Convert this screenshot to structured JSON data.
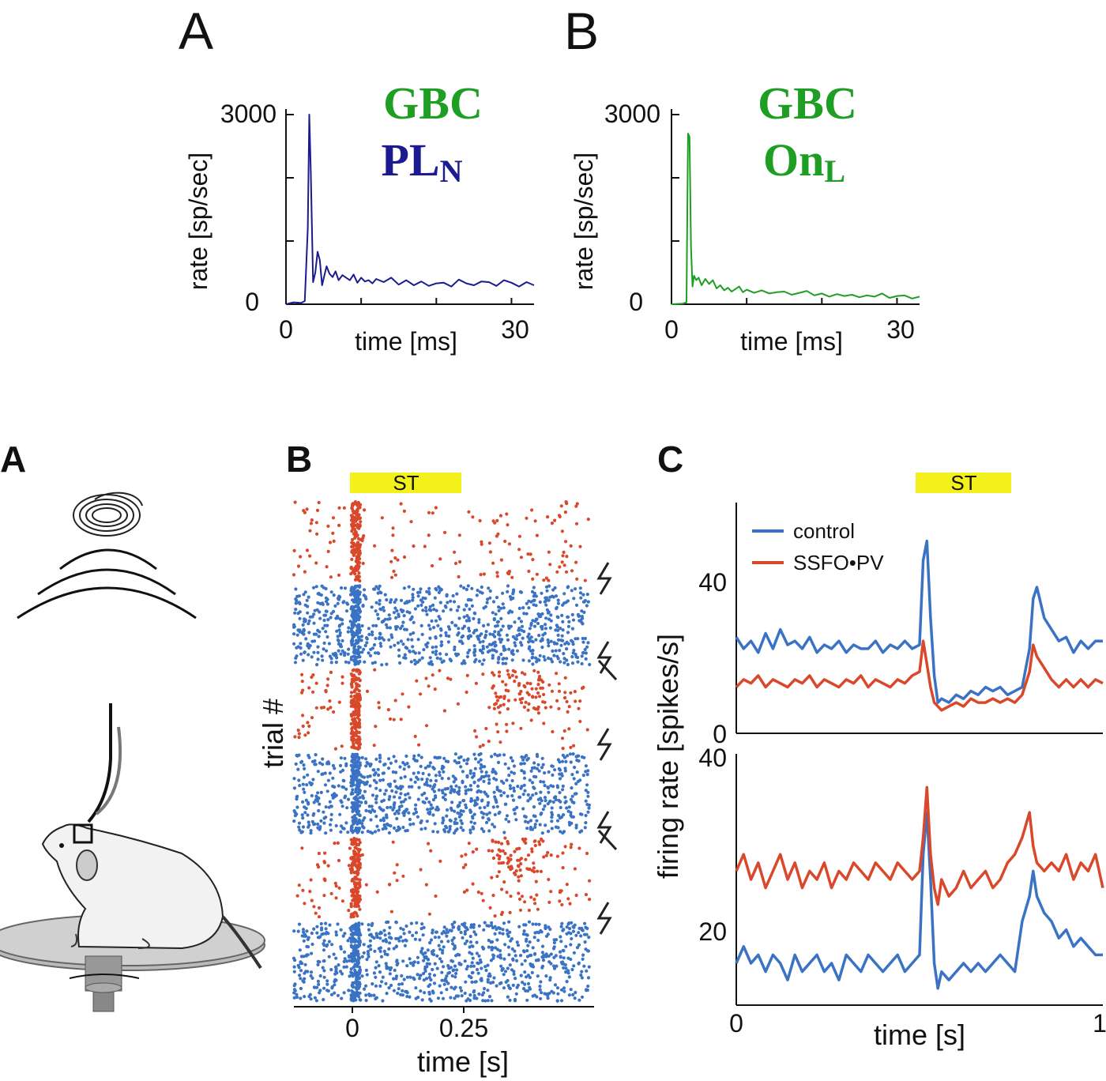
{
  "colors": {
    "blue_dark": "#1b1b8f",
    "green": "#1e9e23",
    "blue": "#3a72c4",
    "red": "#d9482a",
    "yellow": "#f4f01c",
    "black": "#111111"
  },
  "top": {
    "panel_a": {
      "letter": "A",
      "title_line1": "GBC",
      "title_line2_main": "PL",
      "title_line2_sub": "N",
      "ylabel": "rate [sp/sec]",
      "xlabel": "time [ms]",
      "yticks": [
        "3000",
        "0"
      ],
      "xticks": [
        "0",
        "30"
      ]
    },
    "panel_b": {
      "letter": "B",
      "title_line1": "GBC",
      "title_line2_main": "On",
      "title_line2_sub": "L",
      "ylabel": "rate [sp/sec]",
      "xlabel": "time [ms]",
      "yticks": [
        "3000",
        "0"
      ],
      "xticks": [
        "0",
        "30"
      ]
    }
  },
  "bottom": {
    "panel_a": {
      "letter": "A",
      "illustration": "head-fixed mouse on rotating platform with speaker above"
    },
    "panel_b": {
      "letter": "B",
      "stim_label": "ST",
      "ylabel": "trial #",
      "xlabel": "time [s]",
      "xticks": [
        "0",
        "0.25"
      ]
    },
    "panel_c": {
      "letter": "C",
      "stim_label": "ST",
      "ylabel": "firing rate [spikes/s]",
      "xlabel": "time [s]",
      "xticks": [
        "0",
        "1"
      ],
      "legend": [
        "control",
        "SSFO•PV"
      ],
      "top_yticks": [
        "40",
        "0"
      ],
      "bottom_yticks": [
        "40",
        "20"
      ]
    }
  },
  "chart_data": [
    {
      "type": "line",
      "panel": "top-A",
      "xlabel": "time [ms]",
      "ylabel": "rate [sp/sec]",
      "xlim": [
        0,
        33
      ],
      "ylim": [
        0,
        3000
      ],
      "series": [
        {
          "color": "#1b1b8f",
          "x": [
            0,
            1,
            2,
            2.5,
            2.9,
            3.1,
            3.3,
            3.6,
            3.9,
            4.2,
            4.5,
            4.8,
            5.1,
            5.4,
            5.8,
            6.2,
            6.6,
            7,
            7.5,
            8,
            8.5,
            9,
            9.5,
            10,
            10.5,
            11,
            11.5,
            12,
            13,
            14,
            15,
            16,
            17,
            18,
            19,
            20,
            21,
            22,
            23,
            24,
            25,
            26,
            27,
            28,
            29,
            30,
            31,
            32,
            33
          ],
          "y": [
            0,
            30,
            20,
            50,
            1200,
            3000,
            2100,
            350,
            500,
            830,
            700,
            300,
            450,
            600,
            480,
            430,
            520,
            380,
            460,
            420,
            380,
            470,
            340,
            420,
            360,
            380,
            330,
            400,
            350,
            420,
            310,
            380,
            300,
            360,
            290,
            330,
            340,
            280,
            390,
            330,
            300,
            360,
            350,
            290,
            380,
            340,
            280,
            350,
            300
          ]
        }
      ]
    },
    {
      "type": "line",
      "panel": "top-B",
      "xlabel": "time [ms]",
      "ylabel": "rate [sp/sec]",
      "xlim": [
        0,
        33
      ],
      "ylim": [
        0,
        3000
      ],
      "series": [
        {
          "color": "#1e9e23",
          "x": [
            0,
            1.5,
            2,
            2.2,
            2.4,
            2.6,
            2.8,
            3.0,
            3.3,
            3.6,
            4,
            4.5,
            5,
            5.5,
            6,
            6.5,
            7,
            7.5,
            8,
            8.5,
            9,
            9.5,
            10,
            11,
            12,
            13,
            14,
            15,
            16,
            17,
            18,
            19,
            20,
            21,
            22,
            23,
            24,
            25,
            26,
            27,
            28,
            29,
            30,
            31,
            32,
            33
          ],
          "y": [
            0,
            10,
            30,
            2700,
            2650,
            900,
            280,
            450,
            380,
            420,
            300,
            400,
            320,
            380,
            250,
            300,
            220,
            260,
            200,
            240,
            280,
            190,
            230,
            180,
            220,
            170,
            190,
            200,
            150,
            180,
            210,
            140,
            170,
            120,
            160,
            130,
            150,
            110,
            140,
            120,
            170,
            100,
            130,
            140,
            90,
            120
          ]
        }
      ]
    },
    {
      "type": "scatter",
      "panel": "bottom-B",
      "title": "",
      "xlabel": "time [s]",
      "ylabel": "trial #",
      "xlim": [
        -0.125,
        0.53
      ],
      "stimulus": {
        "label": "ST",
        "start": 0,
        "end": 0.25
      },
      "blocks": [
        {
          "color": "red",
          "condition": "SSFO•PV",
          "dense_response": [
            0,
            0.02
          ],
          "late_cluster": null
        },
        {
          "color": "blue",
          "condition": "control",
          "dense_response": [
            0,
            0.02
          ],
          "late_cluster": null
        },
        {
          "color": "red",
          "condition": "SSFO•PV",
          "dense_response": [
            0,
            0.02
          ],
          "late_cluster": [
            0.3,
            0.42
          ]
        },
        {
          "color": "blue",
          "condition": "control",
          "dense_response": [
            0,
            0.02
          ],
          "late_cluster": null
        },
        {
          "color": "red",
          "condition": "SSFO•PV",
          "dense_response": [
            0,
            0.02
          ],
          "late_cluster": [
            0.3,
            0.42
          ]
        },
        {
          "color": "blue",
          "condition": "control",
          "dense_response": [
            0,
            0.02
          ],
          "late_cluster": null
        }
      ]
    },
    {
      "type": "line",
      "panel": "bottom-C-top",
      "xlabel": "time [s]",
      "ylabel": "firing rate [spikes/s]",
      "xlim": [
        0,
        1
      ],
      "ylim": [
        0,
        60
      ],
      "stimulus": {
        "label": "ST",
        "start": 0.5,
        "end": 0.8
      },
      "series": [
        {
          "name": "control",
          "color": "#3a72c4",
          "x": [
            0,
            0.02,
            0.04,
            0.06,
            0.08,
            0.1,
            0.12,
            0.14,
            0.16,
            0.18,
            0.2,
            0.22,
            0.24,
            0.26,
            0.28,
            0.3,
            0.32,
            0.34,
            0.36,
            0.38,
            0.4,
            0.42,
            0.44,
            0.46,
            0.48,
            0.5,
            0.51,
            0.52,
            0.53,
            0.54,
            0.55,
            0.56,
            0.58,
            0.6,
            0.62,
            0.64,
            0.66,
            0.68,
            0.7,
            0.72,
            0.74,
            0.76,
            0.78,
            0.8,
            0.81,
            0.82,
            0.84,
            0.86,
            0.88,
            0.9,
            0.92,
            0.94,
            0.96,
            0.98,
            1
          ],
          "y": [
            25,
            22,
            24,
            21,
            26,
            22,
            27,
            23,
            24,
            22,
            25,
            21,
            23,
            22,
            24,
            21,
            23,
            22,
            22,
            24,
            21,
            23,
            22,
            24,
            22,
            23,
            45,
            50,
            30,
            15,
            8,
            9,
            8,
            10,
            9,
            11,
            10,
            12,
            11,
            12,
            10,
            11,
            12,
            22,
            35,
            38,
            30,
            27,
            24,
            25,
            21,
            24,
            22,
            24,
            24
          ]
        },
        {
          "name": "SSFO•PV",
          "color": "#d9482a",
          "x": [
            0,
            0.02,
            0.04,
            0.06,
            0.08,
            0.1,
            0.12,
            0.14,
            0.16,
            0.18,
            0.2,
            0.22,
            0.24,
            0.26,
            0.28,
            0.3,
            0.32,
            0.34,
            0.36,
            0.38,
            0.4,
            0.42,
            0.44,
            0.46,
            0.48,
            0.5,
            0.51,
            0.52,
            0.53,
            0.54,
            0.55,
            0.56,
            0.58,
            0.6,
            0.62,
            0.64,
            0.66,
            0.68,
            0.7,
            0.72,
            0.74,
            0.76,
            0.78,
            0.8,
            0.81,
            0.82,
            0.84,
            0.86,
            0.88,
            0.9,
            0.92,
            0.94,
            0.96,
            0.98,
            1
          ],
          "y": [
            12,
            14,
            13,
            15,
            12,
            14,
            13,
            12,
            14,
            13,
            15,
            12,
            14,
            13,
            12,
            14,
            13,
            15,
            12,
            14,
            13,
            12,
            14,
            13,
            15,
            16,
            24,
            18,
            12,
            8,
            7,
            6,
            7,
            8,
            7,
            9,
            8,
            8,
            9,
            8,
            9,
            8,
            10,
            16,
            23,
            20,
            17,
            14,
            12,
            14,
            12,
            14,
            12,
            14,
            13
          ]
        }
      ]
    },
    {
      "type": "line",
      "panel": "bottom-C-bottom",
      "xlabel": "time [s]",
      "ylabel": "firing rate [spikes/s]",
      "xlim": [
        0,
        1
      ],
      "ylim": [
        10,
        40
      ],
      "series": [
        {
          "name": "control",
          "color": "#3a72c4",
          "x": [
            0,
            0.02,
            0.04,
            0.06,
            0.08,
            0.1,
            0.12,
            0.14,
            0.16,
            0.18,
            0.2,
            0.22,
            0.24,
            0.26,
            0.28,
            0.3,
            0.32,
            0.34,
            0.36,
            0.38,
            0.4,
            0.42,
            0.44,
            0.46,
            0.48,
            0.5,
            0.51,
            0.52,
            0.53,
            0.54,
            0.55,
            0.56,
            0.58,
            0.6,
            0.62,
            0.64,
            0.66,
            0.68,
            0.7,
            0.72,
            0.74,
            0.76,
            0.78,
            0.8,
            0.81,
            0.82,
            0.84,
            0.86,
            0.88,
            0.9,
            0.92,
            0.94,
            0.96,
            0.98,
            1
          ],
          "y": [
            15,
            17,
            15,
            16,
            14,
            16,
            15,
            13,
            16,
            14,
            15,
            16,
            14,
            15,
            13,
            16,
            15,
            14,
            16,
            15,
            14,
            15,
            16,
            14,
            15,
            16,
            28,
            33,
            25,
            15,
            12,
            14,
            13,
            14,
            15,
            14,
            15,
            14,
            15,
            16,
            15,
            14,
            20,
            23,
            26,
            23,
            21,
            20,
            18,
            19,
            17,
            18,
            17,
            16,
            16
          ]
        },
        {
          "name": "SSFO•PV",
          "color": "#d9482a",
          "x": [
            0,
            0.02,
            0.04,
            0.06,
            0.08,
            0.1,
            0.12,
            0.14,
            0.16,
            0.18,
            0.2,
            0.22,
            0.24,
            0.26,
            0.28,
            0.3,
            0.32,
            0.34,
            0.36,
            0.38,
            0.4,
            0.42,
            0.44,
            0.46,
            0.48,
            0.5,
            0.51,
            0.52,
            0.53,
            0.54,
            0.55,
            0.56,
            0.58,
            0.6,
            0.62,
            0.64,
            0.66,
            0.68,
            0.7,
            0.72,
            0.74,
            0.76,
            0.78,
            0.8,
            0.81,
            0.82,
            0.84,
            0.86,
            0.88,
            0.9,
            0.92,
            0.94,
            0.96,
            0.98,
            1
          ],
          "y": [
            26,
            28,
            25,
            27,
            24,
            26,
            28,
            25,
            27,
            24,
            26,
            25,
            27,
            24,
            26,
            25,
            27,
            26,
            25,
            27,
            26,
            25,
            27,
            26,
            25,
            26,
            30,
            36,
            28,
            24,
            22,
            25,
            23,
            24,
            26,
            24,
            25,
            26,
            24,
            25,
            27,
            28,
            30,
            33,
            29,
            27,
            26,
            27,
            26,
            28,
            25,
            27,
            26,
            28,
            24
          ]
        }
      ]
    }
  ]
}
